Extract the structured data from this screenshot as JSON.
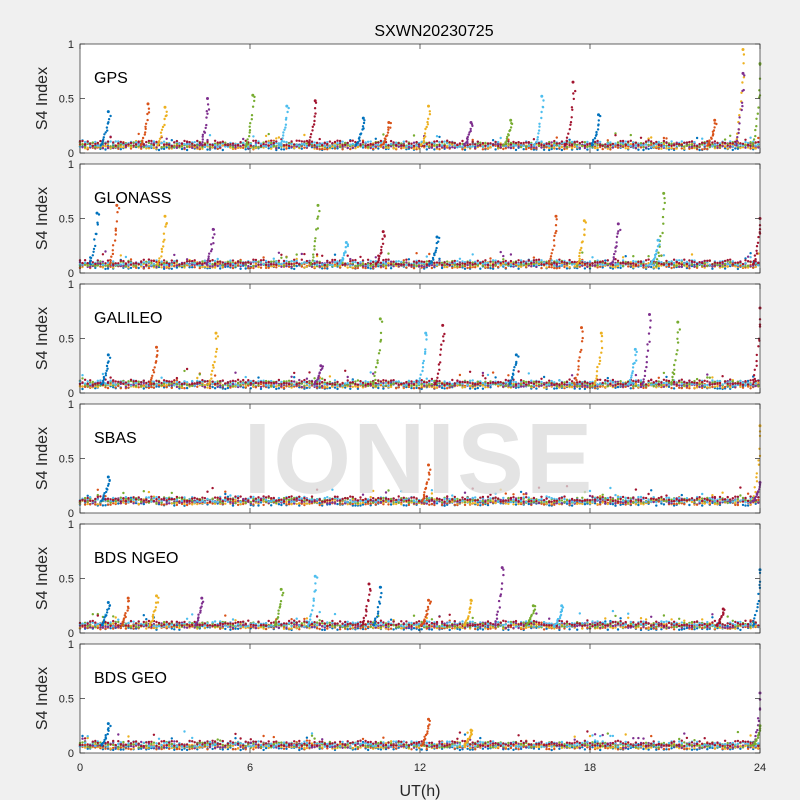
{
  "chart_data": {
    "type": "scatter",
    "title": "SXWN20230725",
    "xlabel": "UT(h)",
    "ylabel": "S4 Index",
    "xlim": [
      0,
      24
    ],
    "ylim": [
      0,
      1
    ],
    "xticks": [
      "0",
      "6",
      "12",
      "18",
      "24"
    ],
    "yticks": [
      "0",
      "0.5",
      "1"
    ],
    "watermark": "IONISE",
    "colors": [
      "#0072BD",
      "#D95319",
      "#EDB120",
      "#7E2F8E",
      "#77AC30",
      "#4DBEEE",
      "#A2142F"
    ],
    "panels": [
      {
        "name": "GPS",
        "baseline": 0.07,
        "spikes": [
          {
            "x": 1.0,
            "y": 0.38
          },
          {
            "x": 2.4,
            "y": 0.45
          },
          {
            "x": 3.0,
            "y": 0.42
          },
          {
            "x": 4.5,
            "y": 0.5
          },
          {
            "x": 6.1,
            "y": 0.53
          },
          {
            "x": 7.3,
            "y": 0.43
          },
          {
            "x": 8.3,
            "y": 0.48
          },
          {
            "x": 10.0,
            "y": 0.32
          },
          {
            "x": 10.9,
            "y": 0.28
          },
          {
            "x": 12.3,
            "y": 0.43
          },
          {
            "x": 13.8,
            "y": 0.28
          },
          {
            "x": 15.2,
            "y": 0.3
          },
          {
            "x": 16.3,
            "y": 0.52
          },
          {
            "x": 17.4,
            "y": 0.65
          },
          {
            "x": 18.3,
            "y": 0.35
          },
          {
            "x": 22.4,
            "y": 0.3
          },
          {
            "x": 23.4,
            "y": 0.95
          },
          {
            "x": 23.4,
            "y": 0.73
          },
          {
            "x": 24.0,
            "y": 0.82
          }
        ]
      },
      {
        "name": "GLONASS",
        "baseline": 0.08,
        "spikes": [
          {
            "x": 0.6,
            "y": 0.55
          },
          {
            "x": 1.3,
            "y": 0.62
          },
          {
            "x": 3.0,
            "y": 0.52
          },
          {
            "x": 4.7,
            "y": 0.4
          },
          {
            "x": 8.4,
            "y": 0.62
          },
          {
            "x": 9.4,
            "y": 0.28
          },
          {
            "x": 10.7,
            "y": 0.38
          },
          {
            "x": 12.6,
            "y": 0.33
          },
          {
            "x": 16.8,
            "y": 0.52
          },
          {
            "x": 17.8,
            "y": 0.48
          },
          {
            "x": 19.0,
            "y": 0.45
          },
          {
            "x": 20.6,
            "y": 0.73
          },
          {
            "x": 20.4,
            "y": 0.3
          },
          {
            "x": 24.0,
            "y": 0.5
          }
        ]
      },
      {
        "name": "GALILEO",
        "baseline": 0.08,
        "spikes": [
          {
            "x": 1.0,
            "y": 0.35
          },
          {
            "x": 2.7,
            "y": 0.42
          },
          {
            "x": 4.8,
            "y": 0.55
          },
          {
            "x": 8.5,
            "y": 0.25
          },
          {
            "x": 10.6,
            "y": 0.68
          },
          {
            "x": 12.2,
            "y": 0.55
          },
          {
            "x": 12.8,
            "y": 0.62
          },
          {
            "x": 15.4,
            "y": 0.35
          },
          {
            "x": 17.7,
            "y": 0.6
          },
          {
            "x": 18.4,
            "y": 0.55
          },
          {
            "x": 20.1,
            "y": 0.72
          },
          {
            "x": 21.1,
            "y": 0.65
          },
          {
            "x": 19.6,
            "y": 0.4
          },
          {
            "x": 24.0,
            "y": 0.78
          }
        ]
      },
      {
        "name": "SBAS",
        "baseline": 0.11,
        "spikes": [
          {
            "x": 1.0,
            "y": 0.33
          },
          {
            "x": 12.3,
            "y": 0.44
          },
          {
            "x": 24.0,
            "y": 0.8
          },
          {
            "x": 24.0,
            "y": 0.28
          }
        ]
      },
      {
        "name": "BDS NGEO",
        "baseline": 0.07,
        "spikes": [
          {
            "x": 1.0,
            "y": 0.28
          },
          {
            "x": 1.7,
            "y": 0.32
          },
          {
            "x": 2.7,
            "y": 0.34
          },
          {
            "x": 4.3,
            "y": 0.32
          },
          {
            "x": 7.1,
            "y": 0.4
          },
          {
            "x": 8.3,
            "y": 0.52
          },
          {
            "x": 10.2,
            "y": 0.45
          },
          {
            "x": 10.6,
            "y": 0.42
          },
          {
            "x": 12.3,
            "y": 0.3
          },
          {
            "x": 13.8,
            "y": 0.3
          },
          {
            "x": 14.9,
            "y": 0.6
          },
          {
            "x": 16.0,
            "y": 0.25
          },
          {
            "x": 17.0,
            "y": 0.25
          },
          {
            "x": 22.7,
            "y": 0.22
          },
          {
            "x": 24.0,
            "y": 0.58
          }
        ]
      },
      {
        "name": "BDS GEO",
        "baseline": 0.07,
        "spikes": [
          {
            "x": 1.0,
            "y": 0.27
          },
          {
            "x": 12.3,
            "y": 0.31
          },
          {
            "x": 13.8,
            "y": 0.21
          },
          {
            "x": 24.0,
            "y": 0.55
          },
          {
            "x": 24.0,
            "y": 0.25
          }
        ]
      }
    ]
  }
}
